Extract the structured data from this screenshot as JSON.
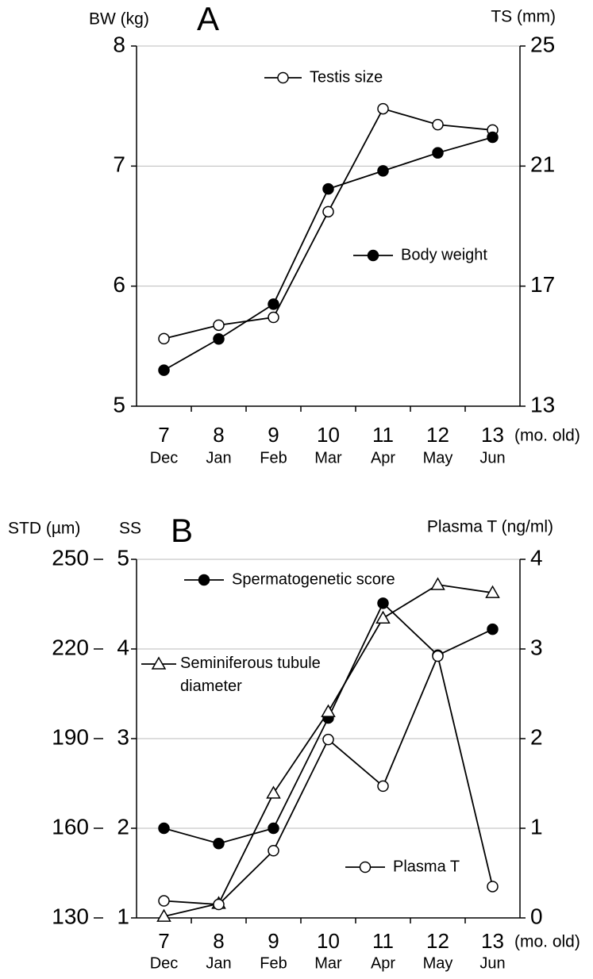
{
  "chart_data": [
    {
      "type": "line",
      "title": "A",
      "categories": [
        "7",
        "8",
        "9",
        "10",
        "11",
        "12",
        "13"
      ],
      "months": [
        "Dec",
        "Jan",
        "Feb",
        "Mar",
        "Apr",
        "May",
        "Jun"
      ],
      "xlabel": "(mo. old)",
      "ylabel": "BW (kg)",
      "y2label": "TS (mm)",
      "ylim": [
        5,
        8
      ],
      "yticks": [
        5,
        6,
        7,
        8
      ],
      "y2lim": [
        13,
        25
      ],
      "y2ticks": [
        13,
        17,
        21,
        25
      ],
      "grid": true,
      "series": [
        {
          "name": "Testis size",
          "color": "#000000",
          "marker": "open",
          "axis": "y2",
          "values": [
            15.25,
            15.7,
            15.96,
            19.48,
            22.91,
            22.38,
            22.2
          ]
        },
        {
          "name": "Body weight",
          "color": "#000000",
          "marker": "filled",
          "values": [
            5.3,
            5.56,
            5.85,
            6.81,
            6.96,
            7.11,
            7.24
          ]
        }
      ]
    },
    {
      "type": "line",
      "title": "B",
      "categories": [
        "7",
        "8",
        "9",
        "10",
        "11",
        "12",
        "13"
      ],
      "months": [
        "Dec",
        "Jan",
        "Feb",
        "Mar",
        "Apr",
        "May",
        "Jun"
      ],
      "xlabel": "(mo. old)",
      "ylabel": "SS",
      "y2label": "Plasma T (ng/ml)",
      "y3label": "STD (µm)",
      "ylim": [
        1,
        5
      ],
      "yticks": [
        1,
        2,
        3,
        4,
        5
      ],
      "y2lim": [
        0,
        4
      ],
      "y2ticks": [
        0,
        1,
        2,
        3,
        4
      ],
      "y3lim": [
        130,
        250
      ],
      "y3ticks": [
        130,
        160,
        190,
        220,
        250
      ],
      "grid": true,
      "series": [
        {
          "name": "Spermatogenetic score",
          "color": "#000000",
          "marker": "filled",
          "values": [
            2.0,
            1.83,
            2.0,
            3.23,
            4.51,
            3.93,
            4.22
          ]
        },
        {
          "name": "Seminiferous tubule diameter",
          "color": "#000000",
          "marker": "triangle",
          "axis": "y3",
          "values": [
            130.5,
            134.8,
            171.7,
            199,
            230.3,
            241.5,
            238.8
          ]
        },
        {
          "name": "Plasma T",
          "color": "#000000",
          "marker": "open",
          "axis": "y2",
          "values": [
            0.19,
            0.15,
            0.75,
            1.99,
            1.47,
            2.92,
            0.35
          ]
        }
      ]
    }
  ]
}
